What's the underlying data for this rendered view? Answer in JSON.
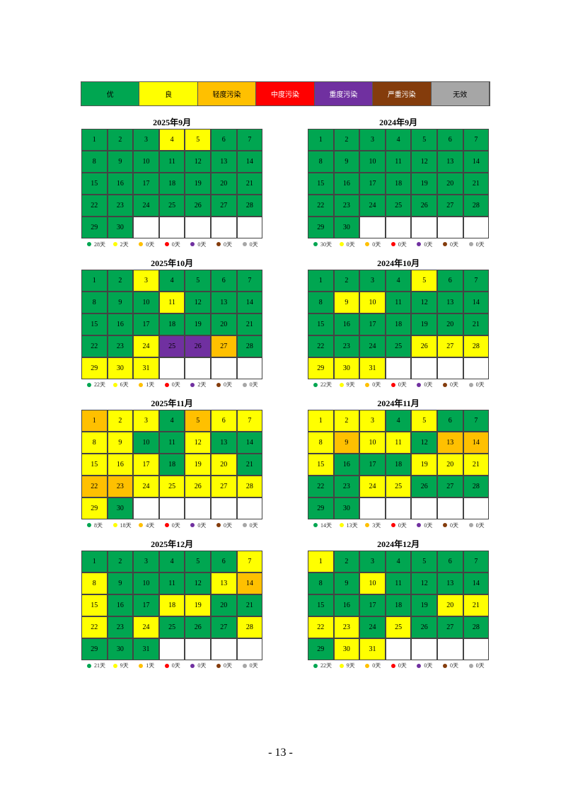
{
  "legend": [
    {
      "label": "优",
      "color": "#00A651"
    },
    {
      "label": "良",
      "color": "#FFFF00"
    },
    {
      "label": "轻度污染",
      "color": "#FFC000"
    },
    {
      "label": "中度污染",
      "color": "#FF0000"
    },
    {
      "label": "重度污染",
      "color": "#7030A0"
    },
    {
      "label": "严重污染",
      "color": "#843C0C"
    },
    {
      "label": "无效",
      "color": "#A6A6A6"
    }
  ],
  "calendars": [
    {
      "title": "2025年9月",
      "days": [
        1,
        2,
        3,
        4,
        5,
        6,
        7,
        8,
        9,
        10,
        11,
        12,
        13,
        14,
        15,
        16,
        17,
        18,
        19,
        20,
        21,
        22,
        23,
        24,
        25,
        26,
        27,
        28,
        29,
        30
      ],
      "levels": [
        0,
        0,
        0,
        1,
        1,
        0,
        0,
        0,
        0,
        0,
        0,
        0,
        0,
        0,
        0,
        0,
        0,
        0,
        0,
        0,
        0,
        0,
        0,
        0,
        0,
        0,
        0,
        0,
        0,
        0
      ],
      "counts": [
        "28天",
        "2天",
        "0天",
        "0天",
        "0天",
        "0天",
        "0天"
      ]
    },
    {
      "title": "2024年9月",
      "days": [
        1,
        2,
        3,
        4,
        5,
        6,
        7,
        8,
        9,
        10,
        11,
        12,
        13,
        14,
        15,
        16,
        17,
        18,
        19,
        20,
        21,
        22,
        23,
        24,
        25,
        26,
        27,
        28,
        29,
        30
      ],
      "levels": [
        0,
        0,
        0,
        0,
        0,
        0,
        0,
        0,
        0,
        0,
        0,
        0,
        0,
        0,
        0,
        0,
        0,
        0,
        0,
        0,
        0,
        0,
        0,
        0,
        0,
        0,
        0,
        0,
        0,
        0
      ],
      "counts": [
        "30天",
        "0天",
        "0天",
        "0天",
        "0天",
        "0天",
        "0天"
      ]
    },
    {
      "title": "2025年10月",
      "days": [
        1,
        2,
        3,
        4,
        5,
        6,
        7,
        8,
        9,
        10,
        11,
        12,
        13,
        14,
        15,
        16,
        17,
        18,
        19,
        20,
        21,
        22,
        23,
        24,
        25,
        26,
        27,
        28,
        29,
        30,
        31
      ],
      "levels": [
        0,
        0,
        1,
        0,
        0,
        0,
        0,
        0,
        0,
        0,
        1,
        0,
        0,
        0,
        0,
        0,
        0,
        0,
        0,
        0,
        0,
        0,
        0,
        1,
        4,
        4,
        2,
        0,
        1,
        1,
        1
      ],
      "counts": [
        "22天",
        "6天",
        "1天",
        "0天",
        "2天",
        "0天",
        "0天"
      ]
    },
    {
      "title": "2024年10月",
      "days": [
        1,
        2,
        3,
        4,
        5,
        6,
        7,
        8,
        9,
        10,
        11,
        12,
        13,
        14,
        15,
        16,
        17,
        18,
        19,
        20,
        21,
        22,
        23,
        24,
        25,
        26,
        27,
        28,
        29,
        30,
        31
      ],
      "levels": [
        0,
        0,
        0,
        0,
        1,
        0,
        0,
        0,
        1,
        1,
        0,
        0,
        0,
        0,
        0,
        0,
        0,
        0,
        0,
        0,
        0,
        0,
        0,
        0,
        0,
        1,
        1,
        1,
        1,
        1,
        1
      ],
      "counts": [
        "22天",
        "9天",
        "0天",
        "0天",
        "0天",
        "0天",
        "0天"
      ]
    },
    {
      "title": "2025年11月",
      "days": [
        1,
        2,
        3,
        4,
        5,
        6,
        7,
        8,
        9,
        10,
        11,
        12,
        13,
        14,
        15,
        16,
        17,
        18,
        19,
        20,
        21,
        22,
        23,
        24,
        25,
        26,
        27,
        28,
        29,
        30
      ],
      "levels": [
        2,
        1,
        1,
        0,
        2,
        1,
        1,
        1,
        1,
        0,
        0,
        1,
        0,
        0,
        1,
        1,
        1,
        0,
        1,
        1,
        0,
        2,
        2,
        1,
        1,
        1,
        1,
        1,
        1,
        0
      ],
      "counts": [
        "8天",
        "18天",
        "4天",
        "0天",
        "0天",
        "0天",
        "0天"
      ]
    },
    {
      "title": "2024年11月",
      "days": [
        1,
        2,
        3,
        4,
        5,
        6,
        7,
        8,
        9,
        10,
        11,
        12,
        13,
        14,
        15,
        16,
        17,
        18,
        19,
        20,
        21,
        22,
        23,
        24,
        25,
        26,
        27,
        28,
        29,
        30
      ],
      "levels": [
        1,
        1,
        1,
        0,
        1,
        0,
        0,
        1,
        2,
        1,
        1,
        0,
        2,
        2,
        1,
        0,
        0,
        0,
        1,
        1,
        1,
        0,
        0,
        1,
        1,
        0,
        0,
        0,
        0,
        0
      ],
      "counts": [
        "14天",
        "13天",
        "3天",
        "0天",
        "0天",
        "0天",
        "0天"
      ]
    },
    {
      "title": "2025年12月",
      "days": [
        1,
        2,
        3,
        4,
        5,
        6,
        7,
        8,
        9,
        10,
        11,
        12,
        13,
        14,
        15,
        16,
        17,
        18,
        19,
        20,
        21,
        22,
        23,
        24,
        25,
        26,
        27,
        28,
        29,
        30,
        31
      ],
      "levels": [
        0,
        0,
        0,
        0,
        0,
        0,
        1,
        1,
        0,
        0,
        0,
        0,
        1,
        2,
        1,
        0,
        0,
        1,
        1,
        0,
        0,
        1,
        0,
        1,
        0,
        0,
        0,
        1,
        0,
        0,
        0
      ],
      "counts": [
        "21天",
        "9天",
        "1天",
        "0天",
        "0天",
        "0天",
        "0天"
      ]
    },
    {
      "title": "2024年12月",
      "days": [
        1,
        2,
        3,
        4,
        5,
        6,
        7,
        8,
        9,
        10,
        11,
        12,
        13,
        14,
        15,
        16,
        17,
        18,
        19,
        20,
        21,
        22,
        23,
        24,
        25,
        26,
        27,
        28,
        29,
        30,
        31
      ],
      "levels": [
        1,
        0,
        0,
        0,
        0,
        0,
        0,
        0,
        0,
        1,
        0,
        0,
        0,
        0,
        0,
        0,
        0,
        0,
        0,
        1,
        1,
        1,
        1,
        0,
        1,
        0,
        0,
        0,
        0,
        1,
        1
      ],
      "counts": [
        "22天",
        "9天",
        "0天",
        "0天",
        "0天",
        "0天",
        "0天"
      ]
    }
  ],
  "page_number": "- 13 -"
}
